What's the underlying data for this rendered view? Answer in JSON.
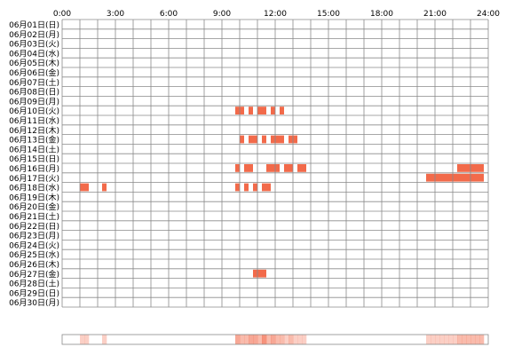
{
  "chart_data": {
    "type": "heatmap",
    "title": "",
    "xlabel": "",
    "ylabel": "",
    "x_range_hours": [
      0,
      24
    ],
    "x_tick_labels": [
      "0:00",
      "3:00",
      "6:00",
      "9:00",
      "12:00",
      "15:00",
      "18:00",
      "21:00",
      "24:00"
    ],
    "row_labels": [
      "06月01日(日)",
      "06月02日(月)",
      "06月03日(火)",
      "06月04日(水)",
      "06月05日(木)",
      "06月06日(金)",
      "06月07日(土)",
      "06月08日(日)",
      "06月09日(月)",
      "06月10日(火)",
      "06月11日(水)",
      "06月12日(木)",
      "06月13日(金)",
      "06月14日(土)",
      "06月15日(日)",
      "06月16日(月)",
      "06月17日(火)",
      "06月18日(水)",
      "06月19日(木)",
      "06月20日(金)",
      "06月21日(土)",
      "06月22日(日)",
      "06月23日(月)",
      "06月24日(火)",
      "06月25日(水)",
      "06月26日(木)",
      "06月27日(金)",
      "06月28日(土)",
      "06月29日(日)",
      "06月30日(月)"
    ],
    "cell_minutes": 15,
    "active_color": "#f26a4a",
    "grid_on": true,
    "grid_color": "#8a8a8a",
    "active_slots": [
      {
        "row": 9,
        "start": 9.75,
        "end": 10.25
      },
      {
        "row": 9,
        "start": 10.5,
        "end": 10.75
      },
      {
        "row": 9,
        "start": 11.0,
        "end": 11.5
      },
      {
        "row": 9,
        "start": 11.75,
        "end": 12.0
      },
      {
        "row": 9,
        "start": 12.25,
        "end": 12.5
      },
      {
        "row": 12,
        "start": 10.0,
        "end": 10.25
      },
      {
        "row": 12,
        "start": 10.5,
        "end": 11.0
      },
      {
        "row": 12,
        "start": 11.25,
        "end": 11.5
      },
      {
        "row": 12,
        "start": 11.75,
        "end": 12.5
      },
      {
        "row": 12,
        "start": 12.75,
        "end": 13.25
      },
      {
        "row": 15,
        "start": 9.75,
        "end": 10.0
      },
      {
        "row": 15,
        "start": 10.25,
        "end": 10.75
      },
      {
        "row": 15,
        "start": 11.5,
        "end": 12.25
      },
      {
        "row": 15,
        "start": 12.5,
        "end": 13.0
      },
      {
        "row": 15,
        "start": 13.25,
        "end": 13.75
      },
      {
        "row": 15,
        "start": 22.25,
        "end": 23.75
      },
      {
        "row": 16,
        "start": 20.5,
        "end": 23.75
      },
      {
        "row": 17,
        "start": 1.0,
        "end": 1.5
      },
      {
        "row": 17,
        "start": 2.25,
        "end": 2.5
      },
      {
        "row": 17,
        "start": 9.75,
        "end": 10.0
      },
      {
        "row": 17,
        "start": 10.25,
        "end": 10.5
      },
      {
        "row": 17,
        "start": 10.75,
        "end": 11.0
      },
      {
        "row": 17,
        "start": 11.25,
        "end": 11.75
      },
      {
        "row": 26,
        "start": 10.75,
        "end": 11.5
      }
    ]
  }
}
